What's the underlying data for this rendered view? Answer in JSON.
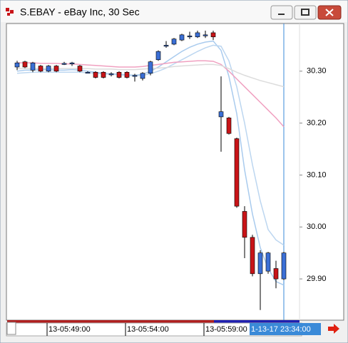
{
  "window": {
    "title": "S.EBAY - eBay Inc, 30 Sec"
  },
  "chart_data": {
    "type": "candlestick",
    "categories": [
      null,
      null,
      null,
      null,
      "13-05:49:00",
      null,
      null,
      null,
      null,
      null,
      null,
      null,
      null,
      null,
      "13-05:54:00",
      null,
      null,
      null,
      null,
      null,
      null,
      null,
      null,
      null,
      "13-05:59:00",
      null,
      null,
      null,
      null,
      null,
      null,
      null,
      null,
      null,
      null
    ],
    "cursor_label": "1-13-17 23:34:00",
    "open": [
      30.308,
      30.318,
      30.302,
      30.31,
      30.3,
      30.31,
      30.315,
      30.316,
      30.31,
      30.298,
      30.298,
      30.298,
      30.295,
      30.298,
      30.298,
      30.292,
      30.286,
      30.296,
      30.322,
      30.35,
      30.352,
      30.36,
      30.368,
      30.366,
      30.37,
      30.374,
      30.212,
      30.21,
      30.17,
      30.03,
      29.98,
      29.91,
      29.915,
      29.92,
      29.9
    ],
    "high": [
      30.32,
      30.32,
      30.318,
      30.312,
      30.312,
      30.312,
      30.318,
      30.318,
      30.312,
      30.3,
      30.3,
      30.3,
      30.298,
      30.3,
      30.3,
      30.295,
      30.298,
      30.32,
      30.34,
      30.358,
      30.364,
      30.372,
      30.376,
      30.378,
      30.378,
      30.378,
      30.29,
      30.212,
      30.172,
      30.04,
      29.985,
      29.955,
      29.952,
      29.935,
      29.952
    ],
    "low": [
      30.302,
      30.306,
      30.298,
      30.298,
      30.298,
      30.298,
      30.312,
      30.31,
      30.298,
      30.296,
      30.286,
      30.286,
      30.29,
      30.286,
      30.286,
      30.28,
      30.282,
      30.292,
      30.32,
      30.345,
      30.35,
      30.358,
      30.362,
      30.364,
      30.364,
      30.36,
      30.145,
      30.178,
      30.037,
      29.94,
      29.905,
      29.84,
      29.91,
      29.882,
      29.898
    ],
    "close": [
      30.316,
      30.308,
      30.316,
      30.3,
      30.31,
      30.3,
      30.315,
      30.316,
      30.3,
      30.298,
      30.288,
      30.288,
      30.295,
      30.288,
      30.288,
      30.292,
      30.296,
      30.318,
      30.338,
      30.35,
      30.362,
      30.37,
      30.368,
      30.374,
      30.37,
      30.366,
      30.222,
      30.18,
      30.04,
      29.98,
      29.91,
      29.95,
      29.95,
      29.9,
      29.95
    ],
    "up_color": "#3b6fd6",
    "down_color": "#c81418",
    "series": [
      {
        "color": "#a9cbee",
        "values": [
          30.3,
          30.302,
          30.302,
          30.303,
          30.303,
          30.302,
          30.302,
          30.303,
          30.302,
          30.3,
          30.298,
          30.296,
          30.295,
          30.294,
          30.293,
          30.292,
          30.294,
          30.3,
          30.308,
          30.318,
          30.328,
          30.338,
          30.346,
          30.352,
          30.356,
          30.358,
          30.34,
          30.29,
          30.218,
          30.11,
          30.025,
          29.96,
          29.92,
          29.895,
          29.888
        ]
      },
      {
        "color": "#bcd6f0",
        "values": [
          30.296,
          30.297,
          30.298,
          30.298,
          30.298,
          30.298,
          30.298,
          30.298,
          30.298,
          30.297,
          30.296,
          30.295,
          30.294,
          30.293,
          30.292,
          30.291,
          30.292,
          30.295,
          30.3,
          30.306,
          30.314,
          30.322,
          30.33,
          30.338,
          30.345,
          30.35,
          30.348,
          30.32,
          30.27,
          30.2,
          30.12,
          30.05,
          29.995,
          29.975,
          29.965
        ]
      },
      {
        "color": "#f0a0c0",
        "values": [
          30.316,
          30.316,
          30.316,
          30.315,
          30.315,
          30.315,
          30.314,
          30.314,
          30.313,
          30.312,
          30.311,
          30.31,
          30.309,
          30.308,
          30.308,
          30.308,
          30.309,
          30.311,
          30.313,
          30.315,
          30.317,
          30.318,
          30.319,
          30.32,
          30.32,
          30.319,
          30.313,
          30.3,
          30.285,
          30.27,
          30.255,
          30.24,
          30.225,
          30.21,
          30.193
        ]
      },
      {
        "color": "#dcdcdc",
        "values": [
          30.305,
          30.305,
          30.305,
          30.305,
          30.305,
          30.305,
          30.305,
          30.305,
          30.305,
          30.305,
          30.304,
          30.304,
          30.304,
          30.303,
          30.303,
          30.303,
          30.304,
          30.305,
          30.306,
          30.307,
          30.309,
          30.31,
          30.311,
          30.312,
          30.313,
          30.313,
          30.311,
          30.305,
          30.298,
          30.292,
          30.287,
          30.282,
          30.278,
          30.274,
          30.27
        ]
      }
    ],
    "ylim": [
      29.826,
      30.389
    ],
    "yticks": [
      {
        "value": 29.9,
        "label": "29.90"
      },
      {
        "value": 30.0,
        "label": "30.00"
      },
      {
        "value": 30.1,
        "label": "30.10"
      },
      {
        "value": 30.2,
        "label": "30.20"
      },
      {
        "value": 30.3,
        "label": "30.30"
      }
    ]
  }
}
